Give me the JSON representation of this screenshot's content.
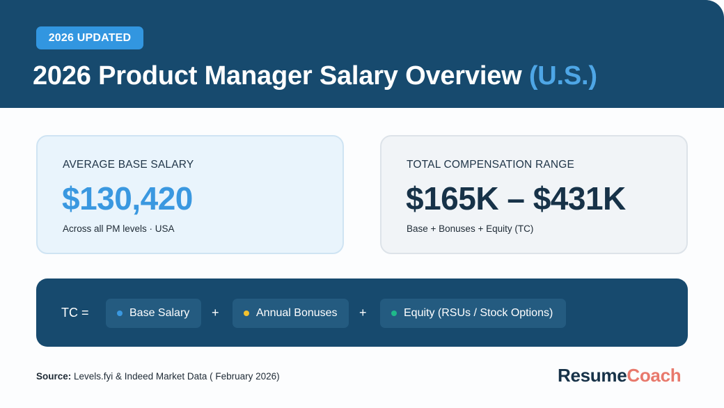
{
  "header": {
    "badge": "2026 UPDATED",
    "title_main": "2026 Product Manager Salary Overview",
    "title_accent": "(U.S.)"
  },
  "cards": {
    "average": {
      "label": "AVERAGE BASE SALARY",
      "value": "$130,420",
      "sub": "Across all PM levels · USA"
    },
    "total": {
      "label": "TOTAL COMPENSATION RANGE",
      "value": "$165K – $431K",
      "sub": "Base + Bonuses + Equity (TC)"
    }
  },
  "tc": {
    "label": "TC =",
    "plus": "+",
    "components": [
      {
        "label": "Base Salary",
        "dot_color": "#3a98e0"
      },
      {
        "label": "Annual Bonuses",
        "dot_color": "#f2c12e"
      },
      {
        "label": "Equity (RSUs / Stock Options)",
        "dot_color": "#1fb98a"
      }
    ]
  },
  "footer": {
    "source_label": "Source:",
    "source_text": "Levels.fyi & Indeed Market Data ( February 2026)",
    "brand_part1": "Resume",
    "brand_part2": "Coach"
  },
  "colors": {
    "navy": "#174a6e",
    "accent_blue": "#3a98e0",
    "brand_coral": "#e8796c"
  }
}
